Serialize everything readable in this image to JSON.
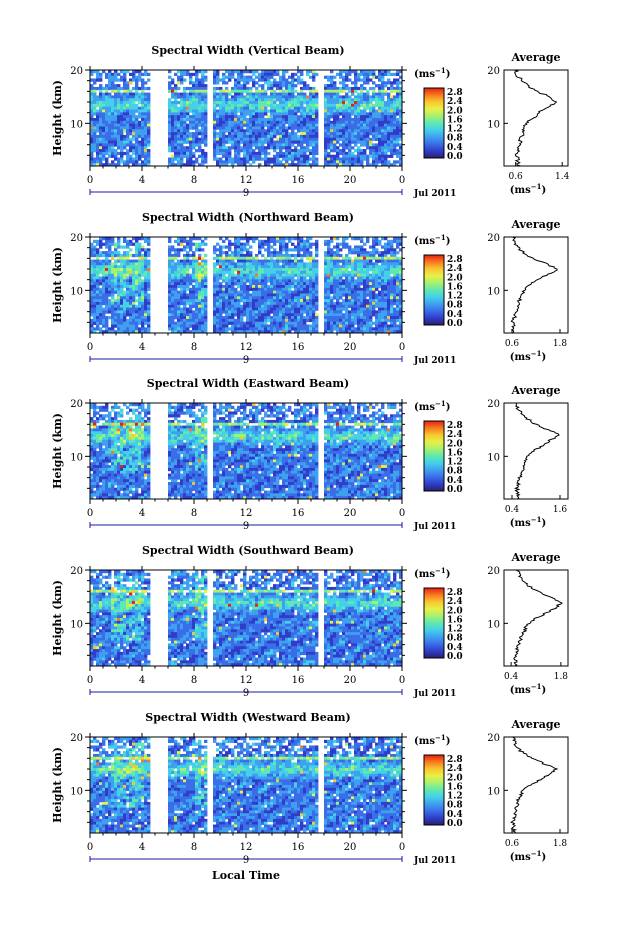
{
  "figure": {
    "xlabel": "Local Time",
    "xticks": [
      "0",
      "4",
      "8",
      "12",
      "16",
      "20",
      "0"
    ],
    "date_label": "9",
    "month_label": "Jul 2011",
    "ylabel": "Height (km)",
    "yticks": [
      "20",
      "10"
    ],
    "colorbar_unit": "(ms",
    "colorbar_unit_sup": "−1",
    "colorbar_ticks": [
      "2.8",
      "2.4",
      "2.0",
      "1.6",
      "1.2",
      "0.8",
      "0.4",
      "0.0"
    ],
    "average_title": "Average",
    "average_xlabel": "(ms",
    "average_xlabel_sup": "−1",
    "colormap": [
      "#2a1f6e",
      "#2f3dc8",
      "#3a6de8",
      "#3fa0f0",
      "#44d0e8",
      "#5fe8b0",
      "#a8f070",
      "#e8f048",
      "#f8c830",
      "#f87a20",
      "#e82010"
    ]
  },
  "chart_data": [
    {
      "type": "heatmap",
      "title": "Spectral Width (Vertical Beam)",
      "x_range_hours": [
        0,
        24
      ],
      "y_range_km": [
        2,
        20
      ],
      "data_gaps_hours": [
        [
          4.7,
          6.0
        ],
        [
          9.0,
          9.4
        ],
        [
          17.6,
          18.0
        ]
      ],
      "colorbar_range": [
        0.0,
        3.0
      ],
      "average_profile": {
        "xticks": [
          "0.6",
          "1.4"
        ],
        "xlim": [
          0.4,
          1.5
        ],
        "height_km": [
          2,
          4,
          6,
          8,
          10,
          11,
          12,
          13,
          14,
          15,
          16,
          17,
          18,
          19,
          20
        ],
        "value": [
          0.65,
          0.62,
          0.66,
          0.72,
          0.78,
          0.9,
          1.0,
          1.15,
          1.3,
          1.2,
          0.95,
          0.8,
          0.72,
          0.62,
          0.6
        ]
      }
    },
    {
      "type": "heatmap",
      "title": "Spectral Width (Northward Beam)",
      "x_range_hours": [
        0,
        24
      ],
      "y_range_km": [
        2,
        20
      ],
      "data_gaps_hours": [
        [
          4.7,
          6.0
        ],
        [
          9.0,
          9.4
        ],
        [
          17.6,
          18.0
        ]
      ],
      "colorbar_range": [
        0.0,
        3.0
      ],
      "average_profile": {
        "xticks": [
          "0.6",
          "1.8"
        ],
        "xlim": [
          0.4,
          2.0
        ],
        "height_km": [
          2,
          4,
          6,
          8,
          10,
          11,
          12,
          13,
          14,
          15,
          16,
          17,
          18,
          19,
          20
        ],
        "value": [
          0.65,
          0.62,
          0.7,
          0.78,
          0.9,
          1.05,
          1.25,
          1.5,
          1.75,
          1.45,
          1.1,
          0.9,
          0.75,
          0.68,
          0.65
        ]
      }
    },
    {
      "type": "heatmap",
      "title": "Spectral Width (Eastward Beam)",
      "x_range_hours": [
        0,
        24
      ],
      "y_range_km": [
        2,
        20
      ],
      "data_gaps_hours": [
        [
          4.7,
          6.0
        ],
        [
          9.0,
          9.4
        ],
        [
          17.6,
          18.0
        ]
      ],
      "colorbar_range": [
        0.0,
        3.0
      ],
      "average_profile": {
        "xticks": [
          "0.4",
          "1.6"
        ],
        "xlim": [
          0.2,
          1.8
        ],
        "height_km": [
          2,
          4,
          6,
          8,
          10,
          11,
          12,
          13,
          14,
          15,
          16,
          17,
          18,
          19,
          20
        ],
        "value": [
          0.55,
          0.52,
          0.6,
          0.68,
          0.8,
          0.95,
          1.15,
          1.35,
          1.6,
          1.3,
          1.0,
          0.8,
          0.65,
          0.55,
          0.5
        ]
      }
    },
    {
      "type": "heatmap",
      "title": "Spectral Width (Southward Beam)",
      "x_range_hours": [
        0,
        24
      ],
      "y_range_km": [
        2,
        20
      ],
      "data_gaps_hours": [
        [
          4.7,
          6.0
        ],
        [
          9.0,
          9.4
        ],
        [
          17.6,
          18.0
        ]
      ],
      "colorbar_range": [
        0.0,
        3.0
      ],
      "average_profile": {
        "xticks": [
          "0.4",
          "1.8"
        ],
        "xlim": [
          0.2,
          2.0
        ],
        "height_km": [
          2,
          4,
          6,
          8,
          10,
          11,
          12,
          13,
          14,
          15,
          16,
          17,
          18,
          19,
          20
        ],
        "value": [
          0.55,
          0.52,
          0.6,
          0.72,
          0.88,
          1.1,
          1.4,
          1.7,
          1.8,
          1.5,
          1.15,
          0.9,
          0.75,
          0.62,
          0.58
        ]
      }
    },
    {
      "type": "heatmap",
      "title": "Spectral Width (Westward Beam)",
      "x_range_hours": [
        0,
        24
      ],
      "y_range_km": [
        2,
        20
      ],
      "data_gaps_hours": [
        [
          4.7,
          6.0
        ],
        [
          9.0,
          9.4
        ],
        [
          17.6,
          18.0
        ]
      ],
      "colorbar_range": [
        0.0,
        3.0
      ],
      "average_profile": {
        "xticks": [
          "0.6",
          "1.8"
        ],
        "xlim": [
          0.4,
          2.0
        ],
        "height_km": [
          2,
          4,
          6,
          8,
          10,
          11,
          12,
          13,
          14,
          15,
          16,
          17,
          18,
          19,
          20
        ],
        "value": [
          0.65,
          0.62,
          0.68,
          0.75,
          0.88,
          1.05,
          1.3,
          1.55,
          1.7,
          1.4,
          1.1,
          0.88,
          0.72,
          0.66,
          0.62
        ]
      }
    }
  ]
}
